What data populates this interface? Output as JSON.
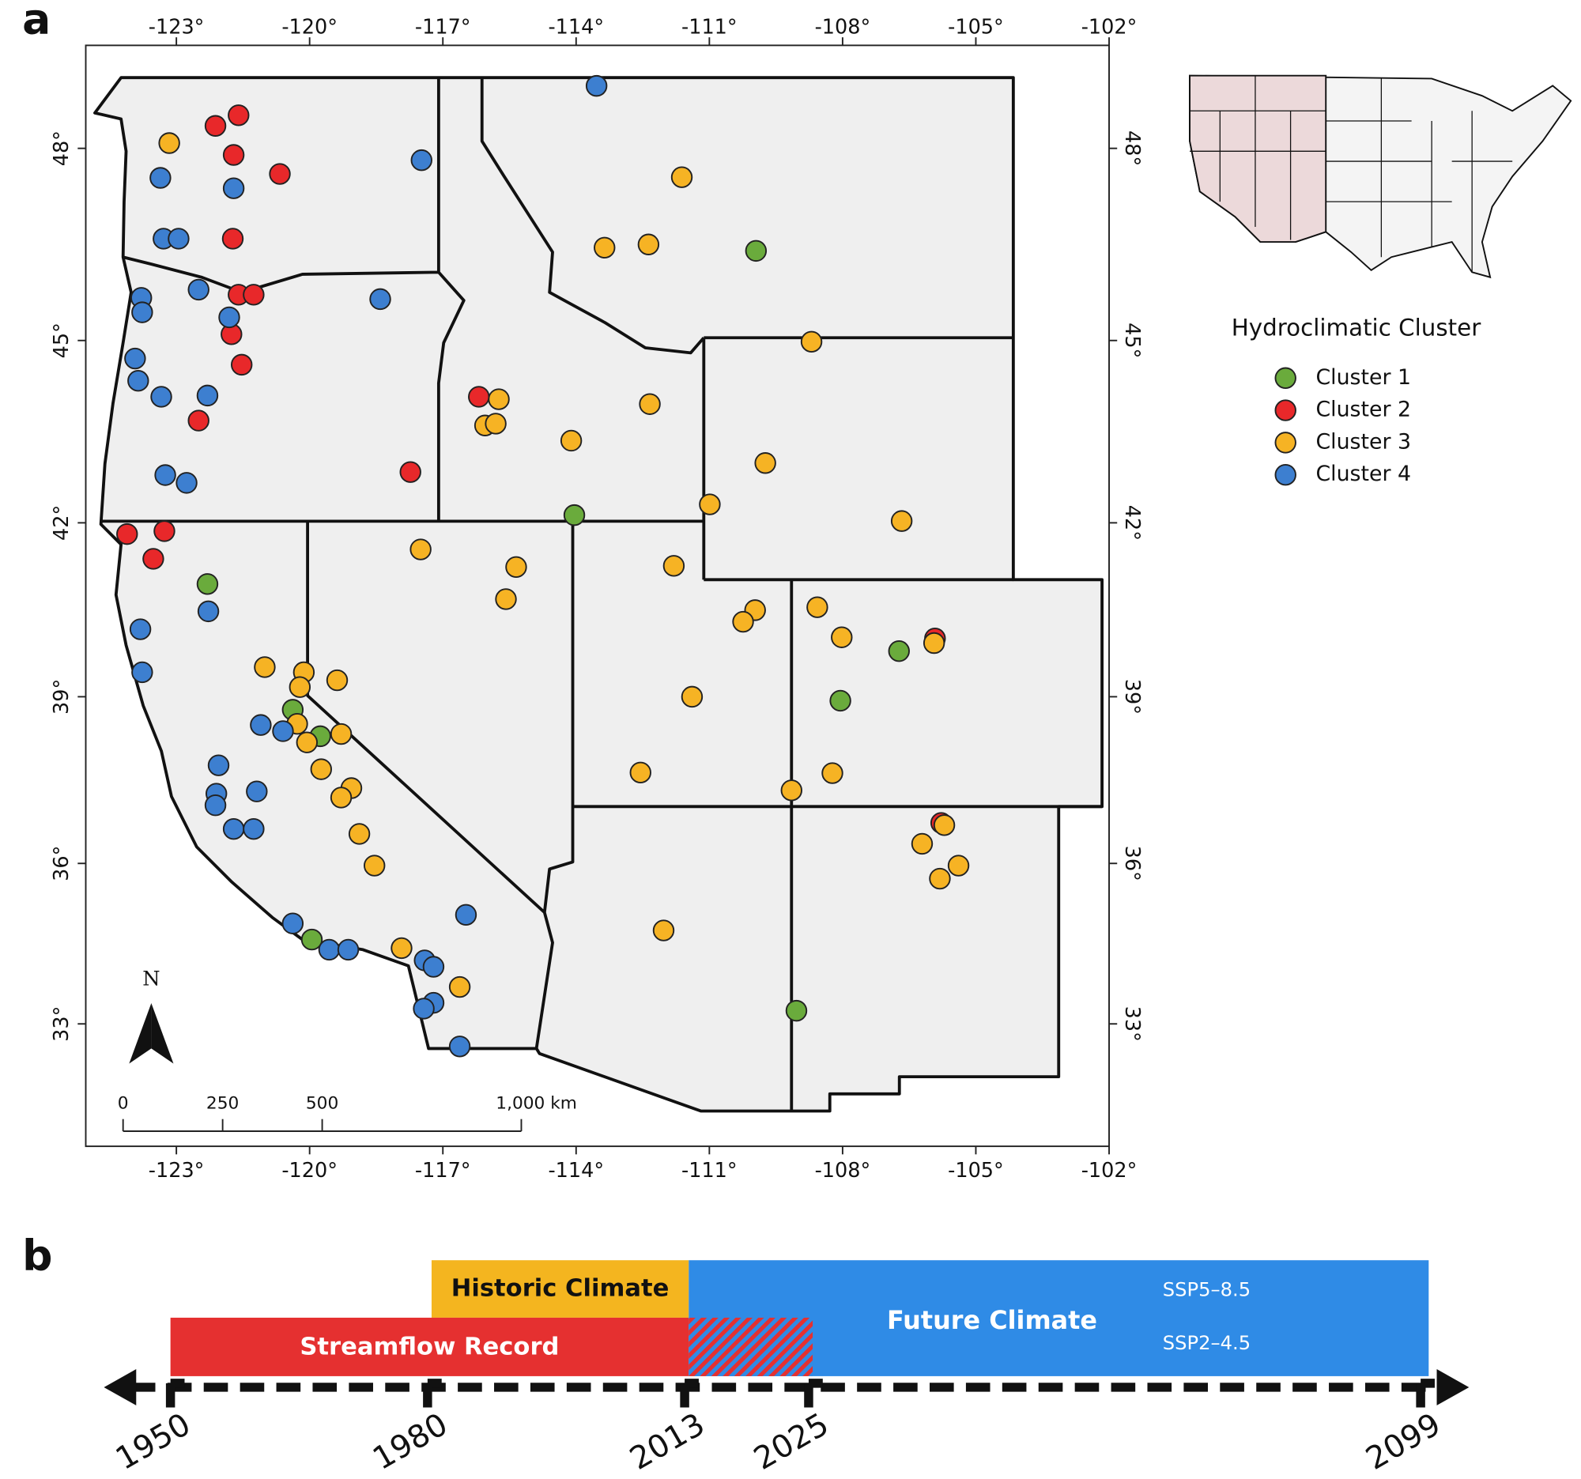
{
  "chart_data": [
    {
      "type": "map",
      "panel_label": "a",
      "xlim": [
        -125.04,
        -102
      ],
      "ylim": [
        30.64,
        49.54
      ],
      "xticks": [
        {
          "value": -123,
          "label": "-123°"
        },
        {
          "value": -120,
          "label": "-120°"
        },
        {
          "value": -117,
          "label": "-117°"
        },
        {
          "value": -114,
          "label": "-114°"
        },
        {
          "value": -111,
          "label": "-111°"
        },
        {
          "value": -108,
          "label": "-108°"
        },
        {
          "value": -105,
          "label": "-105°"
        },
        {
          "value": -102,
          "label": "-102°"
        }
      ],
      "yticks": [
        {
          "value": 33,
          "label": "33°"
        },
        {
          "value": 36,
          "label": "36°"
        },
        {
          "value": 39,
          "label": "39°"
        },
        {
          "value": 42,
          "label": "42°"
        },
        {
          "value": 45,
          "label": "45°"
        },
        {
          "value": 48,
          "label": "48°"
        }
      ],
      "legend_title": "Hydroclimatic Cluster",
      "legend_position": "right",
      "north_label": "N",
      "scale_bar_ticks": [
        0,
        250,
        500,
        {
          "value": 1000,
          "label": "1,000 km"
        }
      ],
      "series": [
        {
          "name": "Cluster 1",
          "color": "#6aab3c",
          "x": [
            -109.95,
            -114.04,
            -122.3,
            -106.73,
            -108.05,
            -120.38,
            -119.76,
            -119.95,
            -109.04
          ],
          "y": [
            46.42,
            42.13,
            40.96,
            39.8,
            38.93,
            38.77,
            38.3,
            34.59,
            33.25
          ]
        },
        {
          "name": "Cluster 2",
          "color": "#e8282a",
          "x": [
            -122.12,
            -121.6,
            -121.71,
            -120.67,
            -121.73,
            -121.6,
            -121.26,
            -121.76,
            -121.53,
            -116.19,
            -122.5,
            -117.73,
            -124.11,
            -123.27,
            -123.52,
            -105.92,
            -105.78
          ],
          "y": [
            48.34,
            48.5,
            47.9,
            47.61,
            46.61,
            45.73,
            45.73,
            45.1,
            44.61,
            44.09,
            43.7,
            42.85,
            41.81,
            41.86,
            41.39,
            40.02,
            36.74
          ]
        },
        {
          "name": "Cluster 3",
          "color": "#f6b324",
          "x": [
            -123.16,
            -111.62,
            -113.36,
            -112.37,
            -108.7,
            -115.74,
            -112.34,
            -116.05,
            -115.81,
            -114.11,
            -109.74,
            -110.99,
            -106.67,
            -117.5,
            -115.35,
            -111.8,
            -115.58,
            -109.97,
            -110.24,
            -108.57,
            -108.02,
            -105.94,
            -121.01,
            -120.13,
            -120.22,
            -119.38,
            -111.39,
            -120.28,
            -120.06,
            -119.29,
            -119.74,
            -119.06,
            -119.29,
            -112.55,
            -108.23,
            -109.15,
            -118.88,
            -105.71,
            -106.21,
            -118.54,
            -105.39,
            -105.81,
            -112.03,
            -117.93,
            -116.62
          ],
          "y": [
            48.08,
            47.56,
            46.47,
            46.52,
            44.98,
            44.05,
            43.97,
            43.62,
            43.65,
            43.37,
            43.0,
            42.31,
            42.03,
            41.55,
            41.25,
            41.27,
            40.7,
            40.51,
            40.31,
            40.56,
            40.04,
            39.94,
            39.52,
            39.43,
            39.17,
            39.29,
            39.0,
            38.52,
            38.19,
            38.34,
            37.71,
            37.37,
            37.2,
            37.65,
            37.64,
            37.33,
            36.54,
            36.7,
            36.36,
            35.96,
            35.96,
            35.72,
            34.76,
            34.43,
            33.7
          ]
        },
        {
          "name": "Cluster 4",
          "color": "#3d7fd0",
          "x": [
            -113.54,
            -121.71,
            -117.48,
            -123.36,
            -123.29,
            -122.95,
            -122.5,
            -123.79,
            -123.77,
            -121.81,
            -118.41,
            -123.93,
            -123.86,
            -123.34,
            -122.3,
            -123.25,
            -122.77,
            -122.28,
            -123.81,
            -123.77,
            -121.1,
            -120.6,
            -122.05,
            -122.1,
            -122.12,
            -121.19,
            -121.71,
            -121.26,
            -116.48,
            -120.38,
            -119.56,
            -119.13,
            -117.41,
            -117.21,
            -117.21,
            -117.43,
            -116.62
          ],
          "y": [
            48.94,
            47.39,
            47.82,
            47.55,
            46.61,
            46.61,
            45.81,
            45.68,
            45.45,
            45.37,
            45.66,
            44.71,
            44.35,
            44.09,
            44.11,
            42.8,
            42.67,
            40.49,
            40.18,
            39.43,
            38.5,
            38.39,
            37.78,
            37.27,
            37.06,
            37.31,
            36.63,
            36.63,
            35.05,
            34.89,
            34.4,
            34.4,
            34.2,
            34.08,
            33.4,
            33.29,
            32.57
          ]
        }
      ]
    },
    {
      "type": "timeline",
      "panel_label": "b",
      "ticks": [
        1950,
        1980,
        2013,
        2025,
        2099
      ],
      "bars": [
        {
          "name": "Historic Climate",
          "color": "#f4b51f",
          "start": 1980,
          "end": 2013
        },
        {
          "name": "Streamflow Record",
          "color": "#e53030",
          "start": 1950,
          "end": 2025
        },
        {
          "name": "Future Climate",
          "color": "#2f8be6",
          "start": 2013,
          "end": 2099,
          "scenarios": [
            "SSP5–8.5",
            "SSP2–4.5"
          ]
        }
      ]
    }
  ]
}
